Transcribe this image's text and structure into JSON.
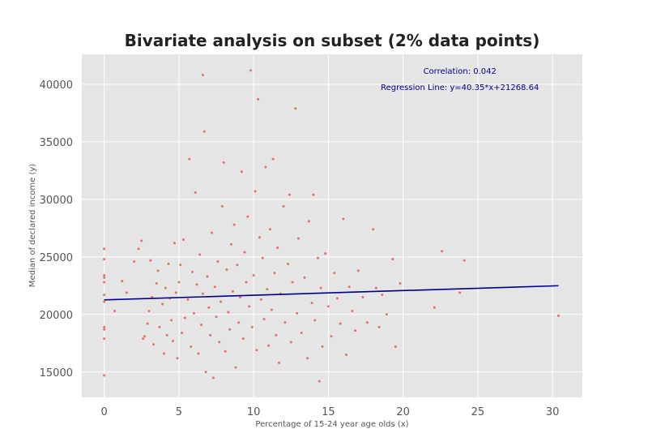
{
  "chart_data": {
    "type": "scatter",
    "title": "Bivariate analysis on subset (2% data points)",
    "xlabel": "Percentage of 15-24 year age olds (x)",
    "ylabel": "Median of declared income (y)",
    "xlim": [
      -1.5,
      32
    ],
    "ylim": [
      12800,
      42600
    ],
    "xticks": [
      0,
      5,
      10,
      15,
      20,
      25,
      30
    ],
    "yticks": [
      15000,
      20000,
      25000,
      30000,
      35000,
      40000
    ],
    "grid": true,
    "annotations": [
      {
        "text": "Correlation: 0.042",
        "x": 23.8,
        "y": 40900
      },
      {
        "text": "Regression Line: y=40.35*x+21268.64",
        "x": 23.8,
        "y": 39500
      }
    ],
    "regression": {
      "slope": 40.35,
      "intercept": 21268.64,
      "x_range": [
        0,
        30.4
      ]
    },
    "colors": {
      "points": "#e24a33",
      "line": "#00008b",
      "annotation": "#00008b",
      "background": "#e5e5e5",
      "grid": "#ffffff"
    },
    "series": [
      {
        "points": [
          [
            0,
            14700
          ],
          [
            0,
            17900
          ],
          [
            0,
            18700
          ],
          [
            0,
            18900
          ],
          [
            0,
            21100
          ],
          [
            0,
            21700
          ],
          [
            0,
            22800
          ],
          [
            0,
            23200
          ],
          [
            0,
            23400
          ],
          [
            0,
            24800
          ],
          [
            0,
            25700
          ],
          [
            0.7,
            20300
          ],
          [
            1.2,
            22900
          ],
          [
            1.5,
            21900
          ],
          [
            2.0,
            24600
          ],
          [
            2.3,
            25700
          ],
          [
            2.5,
            26400
          ],
          [
            2.6,
            17900
          ],
          [
            2.7,
            18100
          ],
          [
            2.9,
            19200
          ],
          [
            3.0,
            20300
          ],
          [
            3.1,
            24700
          ],
          [
            3.2,
            21500
          ],
          [
            3.3,
            17400
          ],
          [
            3.5,
            22700
          ],
          [
            3.6,
            23800
          ],
          [
            3.7,
            18900
          ],
          [
            3.9,
            20900
          ],
          [
            4.0,
            16600
          ],
          [
            4.1,
            22300
          ],
          [
            4.2,
            18200
          ],
          [
            4.3,
            24400
          ],
          [
            4.4,
            21400
          ],
          [
            4.5,
            19500
          ],
          [
            4.6,
            17700
          ],
          [
            4.7,
            26200
          ],
          [
            4.8,
            21900
          ],
          [
            4.9,
            16200
          ],
          [
            5.0,
            22800
          ],
          [
            5.1,
            24300
          ],
          [
            5.2,
            18400
          ],
          [
            5.3,
            26500
          ],
          [
            5.4,
            19700
          ],
          [
            5.6,
            21300
          ],
          [
            5.7,
            33500
          ],
          [
            5.8,
            17200
          ],
          [
            5.9,
            23700
          ],
          [
            6.0,
            20100
          ],
          [
            6.1,
            30600
          ],
          [
            6.2,
            22600
          ],
          [
            6.3,
            16600
          ],
          [
            6.4,
            25200
          ],
          [
            6.5,
            19100
          ],
          [
            6.6,
            21800
          ],
          [
            6.6,
            40800
          ],
          [
            6.7,
            35900
          ],
          [
            6.8,
            15000
          ],
          [
            6.9,
            23300
          ],
          [
            7.0,
            20600
          ],
          [
            7.1,
            18200
          ],
          [
            7.2,
            27100
          ],
          [
            7.3,
            14500
          ],
          [
            7.4,
            22400
          ],
          [
            7.5,
            19800
          ],
          [
            7.6,
            24600
          ],
          [
            7.7,
            17600
          ],
          [
            7.8,
            21100
          ],
          [
            7.9,
            29400
          ],
          [
            8.0,
            33200
          ],
          [
            8.1,
            16800
          ],
          [
            8.2,
            23900
          ],
          [
            8.3,
            20200
          ],
          [
            8.4,
            18700
          ],
          [
            8.5,
            26100
          ],
          [
            8.6,
            22000
          ],
          [
            8.7,
            27800
          ],
          [
            8.8,
            15400
          ],
          [
            8.9,
            24300
          ],
          [
            9.0,
            19300
          ],
          [
            9.1,
            21500
          ],
          [
            9.2,
            32400
          ],
          [
            9.3,
            17900
          ],
          [
            9.4,
            25400
          ],
          [
            9.5,
            22800
          ],
          [
            9.6,
            28500
          ],
          [
            9.7,
            20700
          ],
          [
            9.8,
            41200
          ],
          [
            9.9,
            18900
          ],
          [
            10.0,
            23400
          ],
          [
            10.1,
            30700
          ],
          [
            10.2,
            16900
          ],
          [
            10.3,
            38700
          ],
          [
            10.4,
            26700
          ],
          [
            10.5,
            21300
          ],
          [
            10.6,
            24900
          ],
          [
            10.7,
            19600
          ],
          [
            10.8,
            32800
          ],
          [
            10.9,
            22200
          ],
          [
            11.0,
            17300
          ],
          [
            11.1,
            27400
          ],
          [
            11.2,
            20400
          ],
          [
            11.3,
            33500
          ],
          [
            11.4,
            23600
          ],
          [
            11.5,
            18200
          ],
          [
            11.6,
            25800
          ],
          [
            11.7,
            15800
          ],
          [
            11.8,
            21800
          ],
          [
            12.0,
            29400
          ],
          [
            12.1,
            19300
          ],
          [
            12.3,
            24400
          ],
          [
            12.4,
            30400
          ],
          [
            12.5,
            17600
          ],
          [
            12.6,
            22800
          ],
          [
            12.8,
            37900
          ],
          [
            12.9,
            20100
          ],
          [
            13.0,
            26600
          ],
          [
            13.2,
            18400
          ],
          [
            13.4,
            23200
          ],
          [
            13.6,
            16200
          ],
          [
            13.7,
            28100
          ],
          [
            13.9,
            21000
          ],
          [
            14.0,
            30400
          ],
          [
            14.1,
            19500
          ],
          [
            14.3,
            24900
          ],
          [
            14.4,
            14200
          ],
          [
            14.5,
            22300
          ],
          [
            14.6,
            17200
          ],
          [
            14.8,
            25300
          ],
          [
            15.0,
            20700
          ],
          [
            15.2,
            18100
          ],
          [
            15.4,
            23600
          ],
          [
            15.6,
            21400
          ],
          [
            15.8,
            19200
          ],
          [
            16.0,
            28300
          ],
          [
            16.2,
            16500
          ],
          [
            16.4,
            22400
          ],
          [
            16.6,
            20300
          ],
          [
            16.8,
            18600
          ],
          [
            17.0,
            23800
          ],
          [
            17.3,
            21500
          ],
          [
            17.6,
            19300
          ],
          [
            18.0,
            27400
          ],
          [
            18.2,
            22300
          ],
          [
            18.4,
            18900
          ],
          [
            18.6,
            21700
          ],
          [
            18.9,
            20000
          ],
          [
            19.3,
            24800
          ],
          [
            19.5,
            17200
          ],
          [
            19.8,
            22700
          ],
          [
            22.1,
            20600
          ],
          [
            22.6,
            25500
          ],
          [
            23.8,
            21900
          ],
          [
            24.1,
            24700
          ],
          [
            30.4,
            19900
          ]
        ]
      }
    ]
  }
}
